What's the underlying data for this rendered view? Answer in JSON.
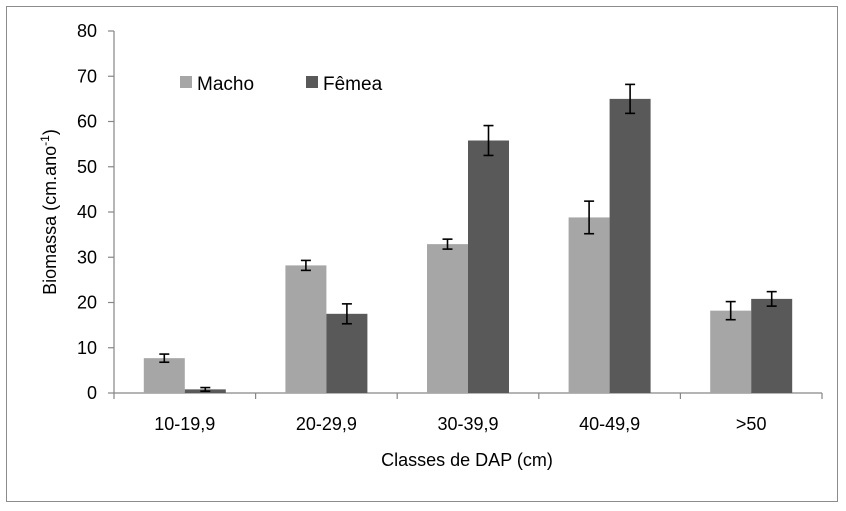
{
  "chart_data": {
    "type": "bar",
    "title": "",
    "xlabel": "Classes de DAP (cm)",
    "ylabel": "Biomassa (cm.ano",
    "ylabel_sup": "-1",
    "ylabel_end": ")",
    "ylim": [
      0,
      80
    ],
    "yticks": [
      "0",
      "10",
      "20",
      "30",
      "40",
      "50",
      "60",
      "70",
      "80"
    ],
    "categories": [
      "10-19,9",
      "20-29,9",
      "30-39,9",
      "40-49,9",
      ">50"
    ],
    "series": [
      {
        "name": "Macho",
        "color": "#a6a6a6",
        "values": [
          7.7,
          28.2,
          32.9,
          38.8,
          18.2
        ],
        "errors": [
          0.9,
          1.1,
          1.1,
          3.6,
          2.0
        ]
      },
      {
        "name": "Fêmea",
        "color": "#595959",
        "values": [
          0.8,
          17.5,
          55.8,
          65.0,
          20.8
        ],
        "errors": [
          0.4,
          2.2,
          3.3,
          3.2,
          1.6
        ]
      }
    ],
    "grid": false,
    "legend": "top-left"
  }
}
